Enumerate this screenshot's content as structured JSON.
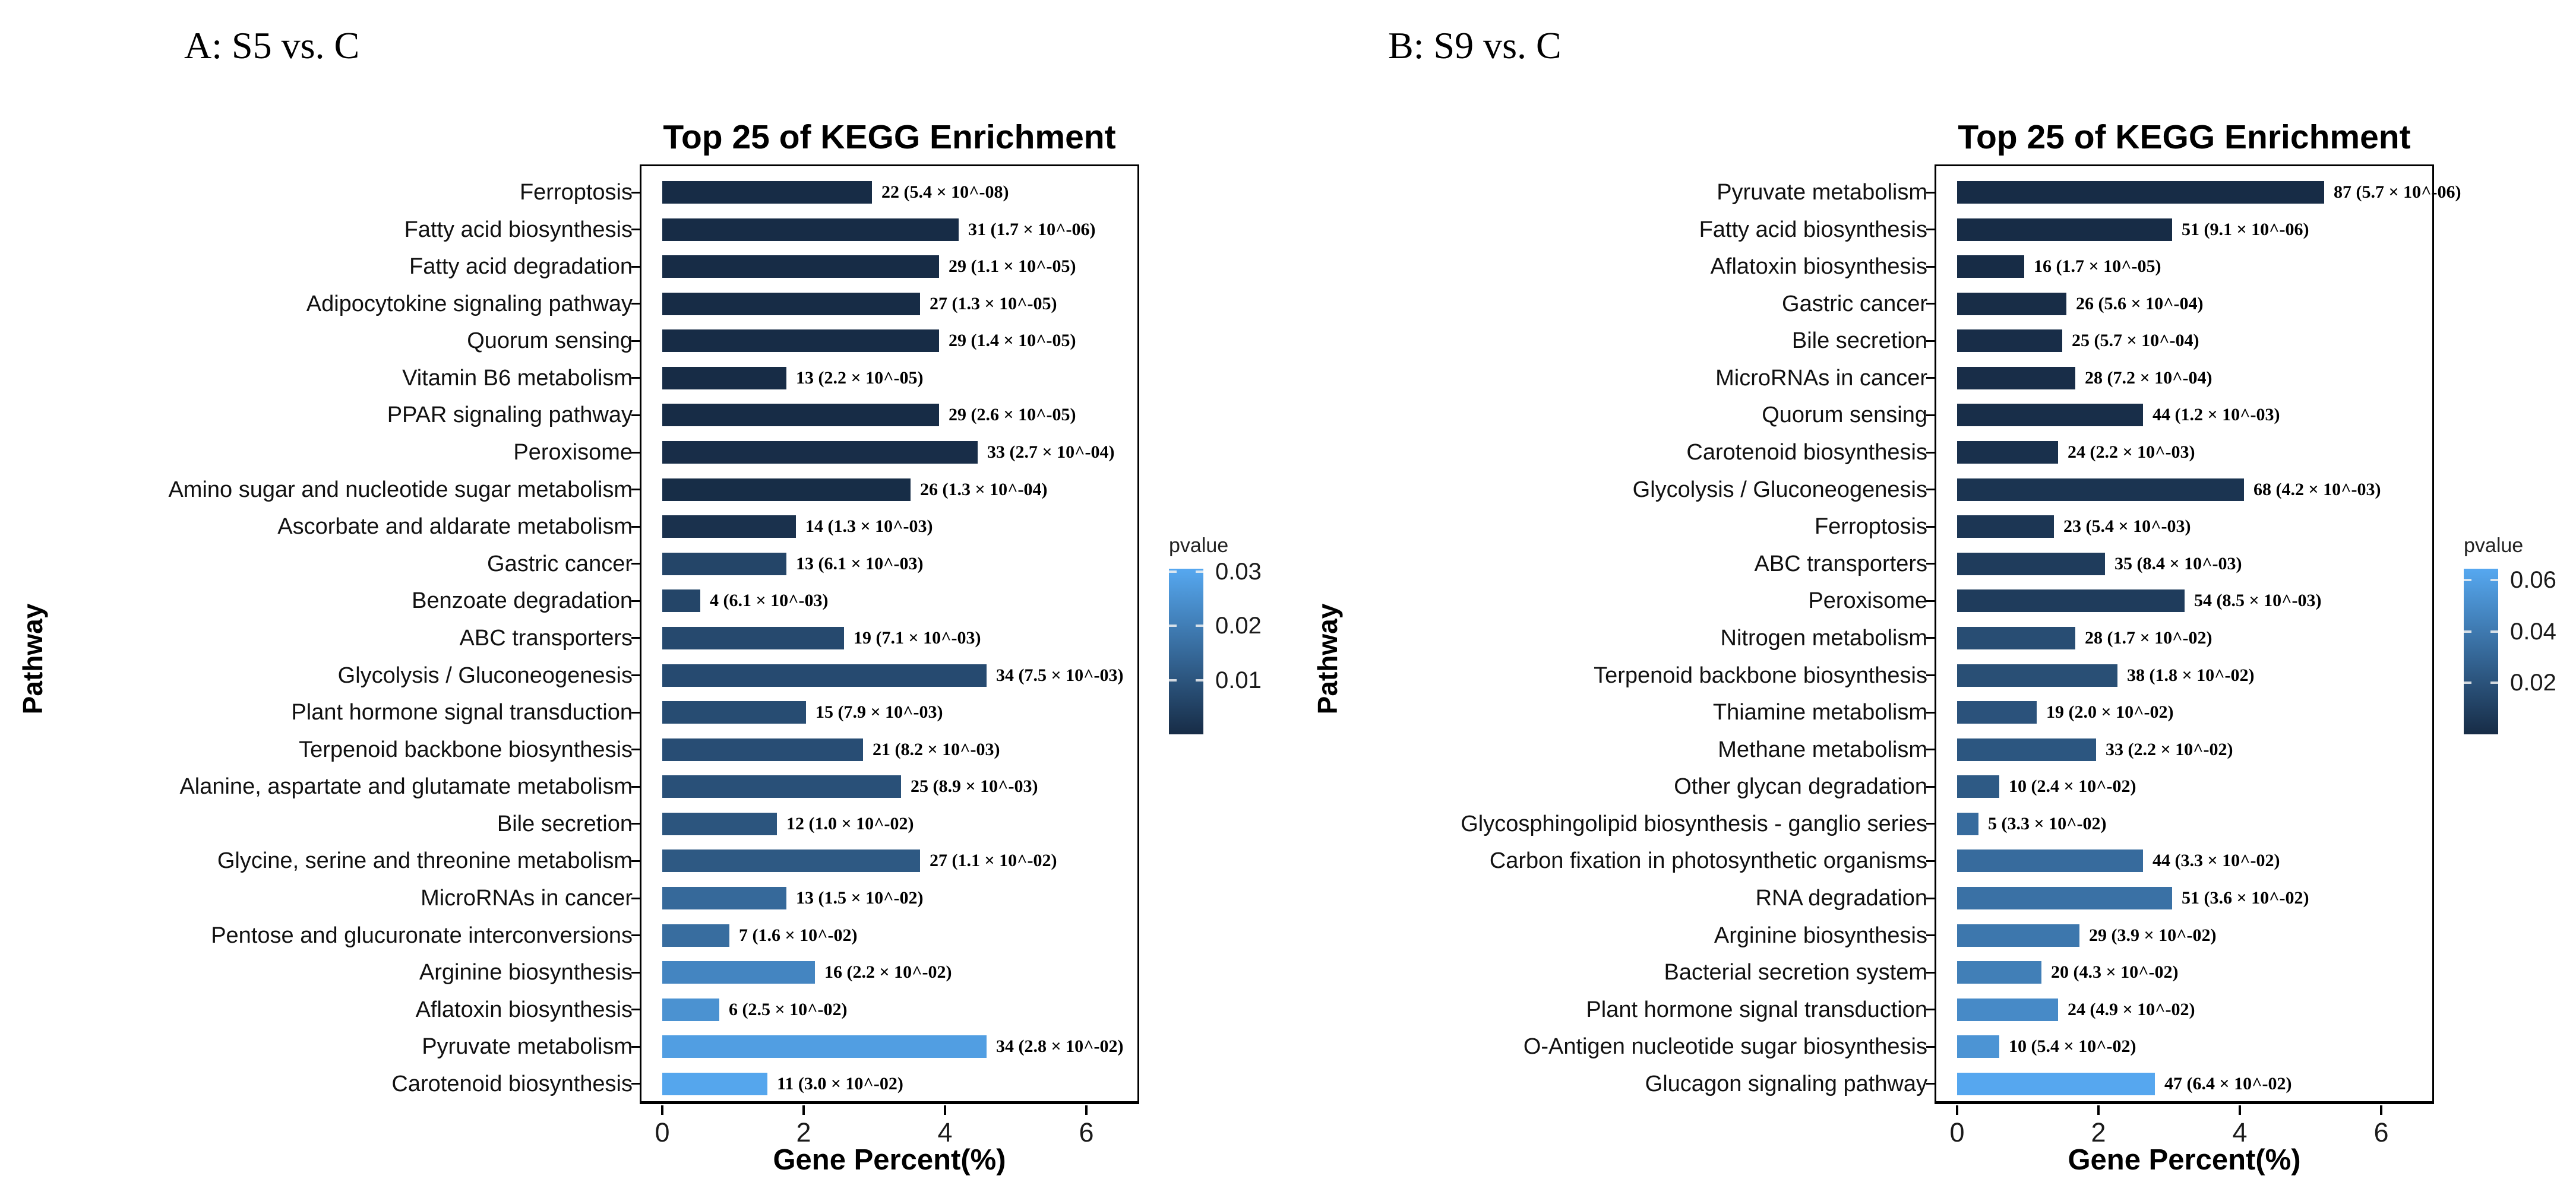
{
  "colors": {
    "bar_dark": "#172c46",
    "bar_light": "#56a8f0",
    "axis": "#000000",
    "label_text": "#111111"
  },
  "chart_data": [
    {
      "type": "bar",
      "panel_label": "A: S5 vs. C",
      "title": "Top 25 of KEGG Enrichment",
      "xlabel": "Gene Percent(%)",
      "ylabel": "Pathway",
      "xlim": [
        0,
        6.8
      ],
      "xticks": [
        "0",
        "2",
        "4",
        "6"
      ],
      "grid": false,
      "legend": {
        "title": "pvalue",
        "position": "right",
        "scale_max": 0.0305,
        "ticks": [
          {
            "value": 0.03,
            "label": "0.03"
          },
          {
            "value": 0.02,
            "label": "0.02"
          },
          {
            "value": 0.01,
            "label": "0.01"
          }
        ]
      },
      "rows": [
        {
          "pathway": "Ferroptosis",
          "genes": 22,
          "pvalue": 5.4e-08,
          "percent": 2.97,
          "label": "22 (5.4 × 10^-08)"
        },
        {
          "pathway": "Fatty acid biosynthesis",
          "genes": 31,
          "pvalue": 1.7e-06,
          "percent": 4.19,
          "label": "31 (1.7 × 10^-06)"
        },
        {
          "pathway": "Fatty acid degradation",
          "genes": 29,
          "pvalue": 1.1e-05,
          "percent": 3.92,
          "label": "29 (1.1 × 10^-05)"
        },
        {
          "pathway": "Adipocytokine signaling pathway",
          "genes": 27,
          "pvalue": 1.3e-05,
          "percent": 3.65,
          "label": "27 (1.3 × 10^-05)"
        },
        {
          "pathway": "Quorum sensing",
          "genes": 29,
          "pvalue": 1.4e-05,
          "percent": 3.92,
          "label": "29 (1.4 × 10^-05)"
        },
        {
          "pathway": "Vitamin B6 metabolism",
          "genes": 13,
          "pvalue": 2.2e-05,
          "percent": 1.76,
          "label": "13 (2.2 × 10^-05)"
        },
        {
          "pathway": "PPAR signaling pathway",
          "genes": 29,
          "pvalue": 2.6e-05,
          "percent": 3.92,
          "label": "29 (2.6 × 10^-05)"
        },
        {
          "pathway": "Peroxisome",
          "genes": 33,
          "pvalue": 0.00027,
          "percent": 4.46,
          "label": "33 (2.7 × 10^-04)"
        },
        {
          "pathway": "Amino sugar and nucleotide sugar metabolism",
          "genes": 26,
          "pvalue": 0.00013,
          "percent": 3.51,
          "label": "26 (1.3 × 10^-04)"
        },
        {
          "pathway": "Ascorbate and aldarate metabolism",
          "genes": 14,
          "pvalue": 0.0013,
          "percent": 1.89,
          "label": "14 (1.3 × 10^-03)"
        },
        {
          "pathway": "Gastric cancer",
          "genes": 13,
          "pvalue": 0.0061,
          "percent": 1.76,
          "label": "13 (6.1 × 10^-03)"
        },
        {
          "pathway": "Benzoate degradation",
          "genes": 4,
          "pvalue": 0.0061,
          "percent": 0.54,
          "label": "4 (6.1 × 10^-03)"
        },
        {
          "pathway": "ABC transporters",
          "genes": 19,
          "pvalue": 0.0071,
          "percent": 2.57,
          "label": "19 (7.1 × 10^-03)"
        },
        {
          "pathway": "Glycolysis / Gluconeogenesis",
          "genes": 34,
          "pvalue": 0.0075,
          "percent": 4.59,
          "label": "34 (7.5 × 10^-03)"
        },
        {
          "pathway": "Plant hormone signal transduction",
          "genes": 15,
          "pvalue": 0.0079,
          "percent": 2.03,
          "label": "15 (7.9 × 10^-03)"
        },
        {
          "pathway": "Terpenoid backbone biosynthesis",
          "genes": 21,
          "pvalue": 0.0082,
          "percent": 2.84,
          "label": "21 (8.2 × 10^-03)"
        },
        {
          "pathway": "Alanine, aspartate and glutamate metabolism",
          "genes": 25,
          "pvalue": 0.0089,
          "percent": 3.38,
          "label": "25 (8.9 × 10^-03)"
        },
        {
          "pathway": "Bile secretion",
          "genes": 12,
          "pvalue": 0.01,
          "percent": 1.62,
          "label": "12 (1.0 × 10^-02)"
        },
        {
          "pathway": "Glycine, serine and threonine metabolism",
          "genes": 27,
          "pvalue": 0.011,
          "percent": 3.65,
          "label": "27 (1.1 × 10^-02)"
        },
        {
          "pathway": "MicroRNAs in cancer",
          "genes": 13,
          "pvalue": 0.015,
          "percent": 1.76,
          "label": "13 (1.5 × 10^-02)"
        },
        {
          "pathway": "Pentose and glucuronate interconversions",
          "genes": 7,
          "pvalue": 0.016,
          "percent": 0.95,
          "label": "7 (1.6 × 10^-02)"
        },
        {
          "pathway": "Arginine biosynthesis",
          "genes": 16,
          "pvalue": 0.022,
          "percent": 2.16,
          "label": "16 (2.2 × 10^-02)"
        },
        {
          "pathway": "Aflatoxin biosynthesis",
          "genes": 6,
          "pvalue": 0.025,
          "percent": 0.81,
          "label": "6 (2.5 × 10^-02)"
        },
        {
          "pathway": "Pyruvate metabolism",
          "genes": 34,
          "pvalue": 0.028,
          "percent": 4.59,
          "label": "34 (2.8 × 10^-02)"
        },
        {
          "pathway": "Carotenoid biosynthesis",
          "genes": 11,
          "pvalue": 0.03,
          "percent": 1.49,
          "label": "11 (3.0 × 10^-02)"
        }
      ]
    },
    {
      "type": "bar",
      "panel_label": "B: S9 vs. C",
      "title": "Top 25 of KEGG Enrichment",
      "xlabel": "Gene Percent(%)",
      "ylabel": "Pathway",
      "xlim": [
        0,
        6.8
      ],
      "xticks": [
        "0",
        "2",
        "4",
        "6"
      ],
      "grid": false,
      "legend": {
        "title": "pvalue",
        "position": "right",
        "scale_max": 0.0645,
        "ticks": [
          {
            "value": 0.06,
            "label": "0.06"
          },
          {
            "value": 0.04,
            "label": "0.04"
          },
          {
            "value": 0.02,
            "label": "0.02"
          }
        ]
      },
      "rows": [
        {
          "pathway": "Pyruvate metabolism",
          "genes": 87,
          "pvalue": 5.7e-06,
          "percent": 5.19,
          "label": "87 (5.7 × 10^-06)"
        },
        {
          "pathway": "Fatty acid biosynthesis",
          "genes": 51,
          "pvalue": 9.1e-06,
          "percent": 3.04,
          "label": "51 (9.1 × 10^-06)"
        },
        {
          "pathway": "Aflatoxin biosynthesis",
          "genes": 16,
          "pvalue": 1.7e-05,
          "percent": 0.95,
          "label": "16 (1.7 × 10^-05)"
        },
        {
          "pathway": "Gastric cancer",
          "genes": 26,
          "pvalue": 0.00056,
          "percent": 1.55,
          "label": "26 (5.6 × 10^-04)"
        },
        {
          "pathway": "Bile secretion",
          "genes": 25,
          "pvalue": 0.00057,
          "percent": 1.49,
          "label": "25 (5.7 × 10^-04)"
        },
        {
          "pathway": "MicroRNAs in cancer",
          "genes": 28,
          "pvalue": 0.00072,
          "percent": 1.67,
          "label": "28 (7.2 × 10^-04)"
        },
        {
          "pathway": "Quorum sensing",
          "genes": 44,
          "pvalue": 0.0012,
          "percent": 2.63,
          "label": "44 (1.2 × 10^-03)"
        },
        {
          "pathway": "Carotenoid biosynthesis",
          "genes": 24,
          "pvalue": 0.0022,
          "percent": 1.43,
          "label": "24 (2.2 × 10^-03)"
        },
        {
          "pathway": "Glycolysis / Gluconeogenesis",
          "genes": 68,
          "pvalue": 0.0042,
          "percent": 4.06,
          "label": "68 (4.2 × 10^-03)"
        },
        {
          "pathway": "Ferroptosis",
          "genes": 23,
          "pvalue": 0.0054,
          "percent": 1.37,
          "label": "23 (5.4 × 10^-03)"
        },
        {
          "pathway": "ABC transporters",
          "genes": 35,
          "pvalue": 0.0084,
          "percent": 2.09,
          "label": "35 (8.4 × 10^-03)"
        },
        {
          "pathway": "Peroxisome",
          "genes": 54,
          "pvalue": 0.0085,
          "percent": 3.22,
          "label": "54 (8.5 × 10^-03)"
        },
        {
          "pathway": "Nitrogen metabolism",
          "genes": 28,
          "pvalue": 0.017,
          "percent": 1.67,
          "label": "28 (1.7 × 10^-02)"
        },
        {
          "pathway": "Terpenoid backbone biosynthesis",
          "genes": 38,
          "pvalue": 0.018,
          "percent": 2.27,
          "label": "38 (1.8 × 10^-02)"
        },
        {
          "pathway": "Thiamine metabolism",
          "genes": 19,
          "pvalue": 0.02,
          "percent": 1.13,
          "label": "19 (2.0 × 10^-02)"
        },
        {
          "pathway": "Methane metabolism",
          "genes": 33,
          "pvalue": 0.022,
          "percent": 1.97,
          "label": "33 (2.2 × 10^-02)"
        },
        {
          "pathway": "Other glycan degradation",
          "genes": 10,
          "pvalue": 0.024,
          "percent": 0.6,
          "label": "10 (2.4 × 10^-02)"
        },
        {
          "pathway": "Glycosphingolipid biosynthesis - ganglio series",
          "genes": 5,
          "pvalue": 0.033,
          "percent": 0.3,
          "label": "5 (3.3 × 10^-02)"
        },
        {
          "pathway": "Carbon fixation in photosynthetic organisms",
          "genes": 44,
          "pvalue": 0.033,
          "percent": 2.63,
          "label": "44 (3.3 × 10^-02)"
        },
        {
          "pathway": "RNA degradation",
          "genes": 51,
          "pvalue": 0.036,
          "percent": 3.04,
          "label": "51 (3.6 × 10^-02)"
        },
        {
          "pathway": "Arginine biosynthesis",
          "genes": 29,
          "pvalue": 0.039,
          "percent": 1.73,
          "label": "29 (3.9 × 10^-02)"
        },
        {
          "pathway": "Bacterial secretion system",
          "genes": 20,
          "pvalue": 0.043,
          "percent": 1.19,
          "label": "20 (4.3 × 10^-02)"
        },
        {
          "pathway": "Plant hormone signal transduction",
          "genes": 24,
          "pvalue": 0.049,
          "percent": 1.43,
          "label": "24 (4.9 × 10^-02)"
        },
        {
          "pathway": "O-Antigen nucleotide sugar biosynthesis",
          "genes": 10,
          "pvalue": 0.054,
          "percent": 0.6,
          "label": "10 (5.4 × 10^-02)"
        },
        {
          "pathway": "Glucagon signaling pathway",
          "genes": 47,
          "pvalue": 0.064,
          "percent": 2.8,
          "label": "47 (6.4 × 10^-02)"
        }
      ]
    }
  ]
}
